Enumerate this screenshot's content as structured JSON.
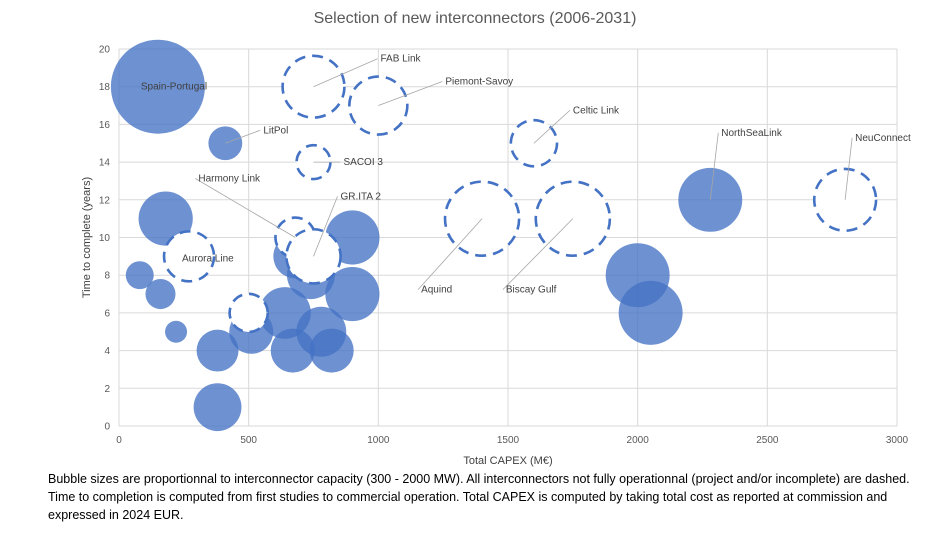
{
  "chart_data": {
    "type": "bubble",
    "title": "Selection of new interconnectors (2006-2031)",
    "xlabel": "Total CAPEX (M€)",
    "ylabel": "Time to complete (years)",
    "xlim": [
      0,
      3000
    ],
    "ylim": [
      0,
      20
    ],
    "xticks": [
      0,
      500,
      1000,
      1500,
      2000,
      2500,
      3000
    ],
    "yticks": [
      0,
      2,
      4,
      6,
      8,
      10,
      12,
      14,
      16,
      18,
      20
    ],
    "grid": true,
    "color": "#4472C4",
    "size_range_mw": [
      300,
      2000
    ],
    "points": [
      {
        "label": "Spain-Portugal",
        "x": 150,
        "y": 18,
        "capacity_mw": 2000,
        "dashed": false
      },
      {
        "label": "LitPol",
        "x": 410,
        "y": 15,
        "capacity_mw": 580,
        "dashed": false
      },
      {
        "label": "",
        "x": 180,
        "y": 11,
        "capacity_mw": 1060,
        "dashed": false
      },
      {
        "label": "",
        "x": 80,
        "y": 8,
        "capacity_mw": 440,
        "dashed": false
      },
      {
        "label": "",
        "x": 160,
        "y": 7,
        "capacity_mw": 490,
        "dashed": false
      },
      {
        "label": "",
        "x": 220,
        "y": 5,
        "capacity_mw": 300,
        "dashed": false
      },
      {
        "label": "",
        "x": 380,
        "y": 4,
        "capacity_mw": 770,
        "dashed": false
      },
      {
        "label": "",
        "x": 380,
        "y": 1,
        "capacity_mw": 910,
        "dashed": false
      },
      {
        "label": "",
        "x": 510,
        "y": 5,
        "capacity_mw": 820,
        "dashed": false
      },
      {
        "label": "",
        "x": 680,
        "y": 9,
        "capacity_mw": 820,
        "dashed": false
      },
      {
        "label": "",
        "x": 900,
        "y": 10,
        "capacity_mw": 1060,
        "dashed": false
      },
      {
        "label": "",
        "x": 900,
        "y": 7,
        "capacity_mw": 1060,
        "dashed": false
      },
      {
        "label": "",
        "x": 640,
        "y": 6,
        "capacity_mw": 1000,
        "dashed": false
      },
      {
        "label": "",
        "x": 780,
        "y": 5,
        "capacity_mw": 960,
        "dashed": false
      },
      {
        "label": "",
        "x": 820,
        "y": 4,
        "capacity_mw": 820,
        "dashed": false
      },
      {
        "label": "",
        "x": 670,
        "y": 4,
        "capacity_mw": 820,
        "dashed": false
      },
      {
        "label": "",
        "x": 740,
        "y": 8,
        "capacity_mw": 910,
        "dashed": false
      },
      {
        "label": "",
        "x": 2000,
        "y": 8,
        "capacity_mw": 1290,
        "dashed": false
      },
      {
        "label": "",
        "x": 2050,
        "y": 6,
        "capacity_mw": 1290,
        "dashed": false
      },
      {
        "label": "NorthSeaLink",
        "x": 2280,
        "y": 12,
        "capacity_mw": 1290,
        "dashed": false
      },
      {
        "label": "FAB Link",
        "x": 750,
        "y": 18,
        "capacity_mw": 1240,
        "dashed": true
      },
      {
        "label": "Piemont-Savoy",
        "x": 1000,
        "y": 17,
        "capacity_mw": 1150,
        "dashed": true
      },
      {
        "label": "SACOI 3",
        "x": 750,
        "y": 14,
        "capacity_mw": 580,
        "dashed": true
      },
      {
        "label": "Celtic Link",
        "x": 1600,
        "y": 15,
        "capacity_mw": 870,
        "dashed": true
      },
      {
        "label": "Aquind",
        "x": 1400,
        "y": 11,
        "capacity_mw": 1530,
        "dashed": true
      },
      {
        "label": "Biscay Gulf",
        "x": 1750,
        "y": 11,
        "capacity_mw": 1530,
        "dashed": true
      },
      {
        "label": "NeuConnect",
        "x": 2800,
        "y": 12,
        "capacity_mw": 1240,
        "dashed": true
      },
      {
        "label": "Aurora Line",
        "x": 270,
        "y": 9,
        "capacity_mw": 960,
        "dashed": true
      },
      {
        "label": "Harmony Link",
        "x": 680,
        "y": 10,
        "capacity_mw": 720,
        "dashed": true
      },
      {
        "label": "GR.ITA 2",
        "x": 750,
        "y": 9,
        "capacity_mw": 1060,
        "dashed": true
      },
      {
        "label": "",
        "x": 500,
        "y": 6,
        "capacity_mw": 680,
        "dashed": true
      }
    ]
  },
  "caption": "Bubble sizes are proportionnal to interconnector capacity (300 - 2000 MW). All interconnectors not fully operationnal (project and/or incomplete) are dashed. Time to completion is computed from first studies to commercial operation. Total CAPEX is computed by taking total cost as reported at commission and expressed in 2024 EUR."
}
